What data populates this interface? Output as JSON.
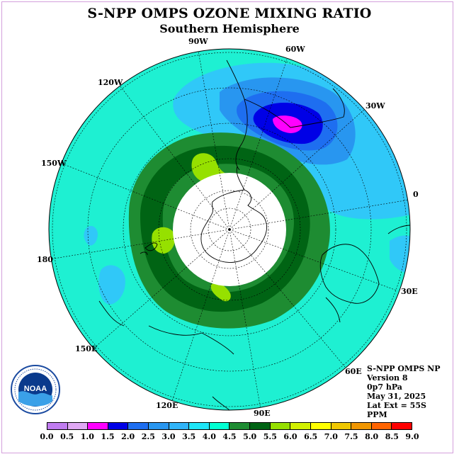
{
  "title": "S-NPP OMPS OZONE MIXING RATIO",
  "subtitle": "Southern Hemisphere",
  "longitudes": {
    "w90": "90W",
    "w60": "60W",
    "w30": "30W",
    "zero": "0",
    "w120": "120W",
    "w150": "150W",
    "lon180": "180",
    "e150": "150E",
    "e120": "120E",
    "e90": "90E",
    "e60": "60E",
    "e30": "30E"
  },
  "info": {
    "line1": "S-NPP OMPS NP",
    "line2": "Version 8",
    "line3": "0p7 hPa",
    "line4": "May 31, 2025",
    "line5": "Lat Ext = 55S",
    "line6": "PPM"
  },
  "logo_text": "NOAA",
  "colorbar": {
    "ticks": [
      "0.0",
      "0.5",
      "1.0",
      "1.5",
      "2.0",
      "2.5",
      "3.0",
      "3.5",
      "4.0",
      "4.5",
      "5.0",
      "5.5",
      "6.0",
      "6.5",
      "7.0",
      "7.5",
      "8.0",
      "8.5",
      "9.0"
    ],
    "colors": [
      "#c07cf0",
      "#e0a8f4",
      "#ff00ff",
      "#0000e6",
      "#1e6ef0",
      "#2896f0",
      "#30b4f8",
      "#1ee6f8",
      "#00ffd2",
      "#1e8c32",
      "#006414",
      "#96e000",
      "#d2f000",
      "#ffff00",
      "#f0c800",
      "#f09600",
      "#ff6400",
      "#ff0000",
      "#8c5a32"
    ]
  },
  "colors": {
    "background_field": "#1ef0d2",
    "polar_cap": "#ffffff"
  }
}
